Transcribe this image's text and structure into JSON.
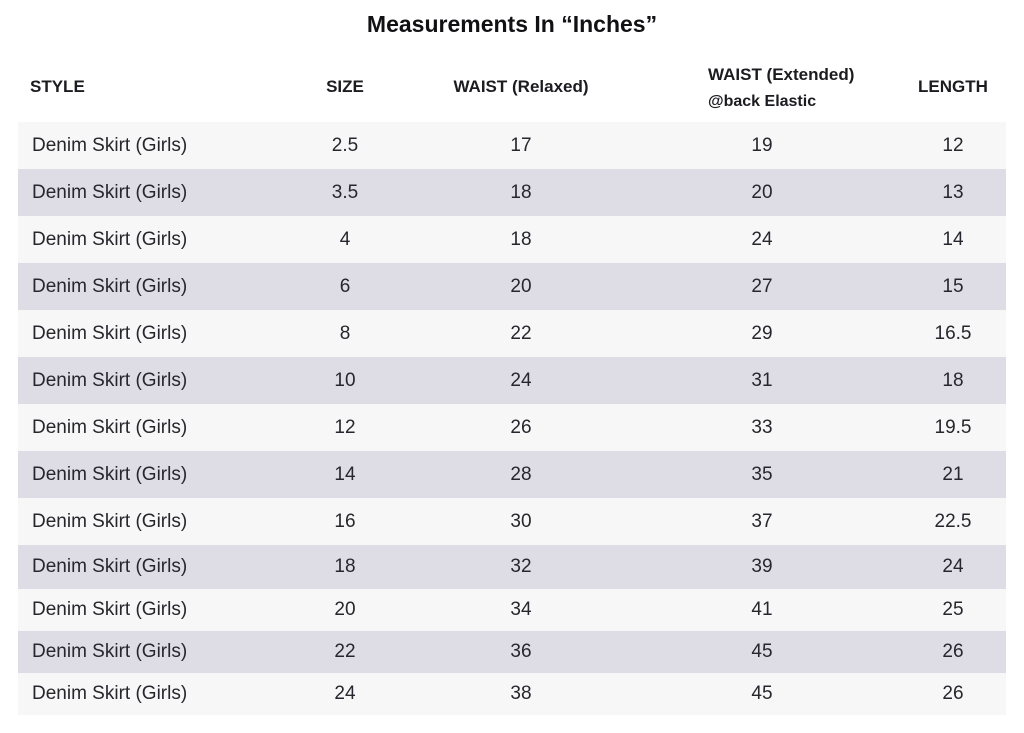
{
  "title": "Measurements In “Inches”",
  "headers": {
    "style": "STYLE",
    "size": "SIZE",
    "waist_relaxed": "WAIST (Relaxed)",
    "waist_extended": "WAIST (Extended)",
    "waist_extended_note": "@back Elastic",
    "length": "LENGTH"
  },
  "row_colors": {
    "light": "#f7f7f8",
    "shaded": "#dedde6"
  },
  "rows": [
    {
      "style": "Denim Skirt (Girls)",
      "size": "2.5",
      "waist_relaxed": "17",
      "waist_extended": "19",
      "length": "12"
    },
    {
      "style": "Denim Skirt (Girls)",
      "size": "3.5",
      "waist_relaxed": "18",
      "waist_extended": "20",
      "length": "13"
    },
    {
      "style": "Denim Skirt (Girls)",
      "size": "4",
      "waist_relaxed": "18",
      "waist_extended": "24",
      "length": "14"
    },
    {
      "style": "Denim Skirt (Girls)",
      "size": "6",
      "waist_relaxed": "20",
      "waist_extended": "27",
      "length": "15"
    },
    {
      "style": "Denim Skirt (Girls)",
      "size": "8",
      "waist_relaxed": "22",
      "waist_extended": "29",
      "length": "16.5"
    },
    {
      "style": "Denim Skirt (Girls)",
      "size": "10",
      "waist_relaxed": "24",
      "waist_extended": "31",
      "length": "18"
    },
    {
      "style": "Denim Skirt (Girls)",
      "size": "12",
      "waist_relaxed": "26",
      "waist_extended": "33",
      "length": "19.5"
    },
    {
      "style": "Denim Skirt (Girls)",
      "size": "14",
      "waist_relaxed": "28",
      "waist_extended": "35",
      "length": "21"
    },
    {
      "style": "Denim Skirt (Girls)",
      "size": "16",
      "waist_relaxed": "30",
      "waist_extended": "37",
      "length": "22.5"
    },
    {
      "style": "Denim Skirt (Girls)",
      "size": "18",
      "waist_relaxed": "32",
      "waist_extended": "39",
      "length": "24"
    },
    {
      "style": "Denim Skirt (Girls)",
      "size": "20",
      "waist_relaxed": "34",
      "waist_extended": "41",
      "length": "25"
    },
    {
      "style": "Denim Skirt (Girls)",
      "size": "22",
      "waist_relaxed": "36",
      "waist_extended": "45",
      "length": "26"
    },
    {
      "style": "Denim Skirt (Girls)",
      "size": "24",
      "waist_relaxed": "38",
      "waist_extended": "45",
      "length": "26"
    }
  ]
}
